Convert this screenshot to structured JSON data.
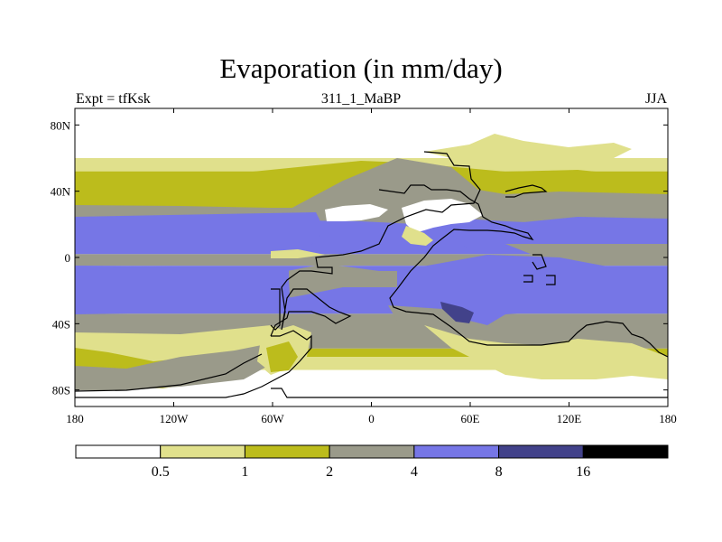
{
  "chart_data": {
    "type": "heatmap",
    "title": "Evaporation (in mm/day)",
    "left_string": "Expt = tfKsk",
    "center_string": "311_1_MaBP",
    "right_string": "JJA",
    "x_ticks": [
      {
        "value": -180,
        "label": "180"
      },
      {
        "value": -120,
        "label": "120W"
      },
      {
        "value": -60,
        "label": "60W"
      },
      {
        "value": 0,
        "label": "0"
      },
      {
        "value": 60,
        "label": "60E"
      },
      {
        "value": 120,
        "label": "120E"
      },
      {
        "value": 180,
        "label": "180"
      }
    ],
    "y_ticks": [
      {
        "value": 80,
        "label": "80N"
      },
      {
        "value": 40,
        "label": "40N"
      },
      {
        "value": 0,
        "label": "0"
      },
      {
        "value": -40,
        "label": "40S"
      },
      {
        "value": -80,
        "label": "80S"
      }
    ],
    "xlim": [
      -180,
      180
    ],
    "ylim": [
      -90,
      90
    ],
    "colorbar": {
      "levels": [
        "0.5",
        "1",
        "2",
        "4",
        "8",
        "16"
      ],
      "colors": [
        "#ffffff",
        "#e0e08c",
        "#bcbc1c",
        "#9a9a8a",
        "#7676e6",
        "#42428a",
        "#000000"
      ]
    },
    "zonal_bands": [
      {
        "lat": [
          60,
          90
        ],
        "class": "0-0.5"
      },
      {
        "lat": [
          52,
          60
        ],
        "class": "0.5-1"
      },
      {
        "lat": [
          40,
          52
        ],
        "class": "1-2"
      },
      {
        "lat": [
          27,
          40
        ],
        "class": "2-4"
      },
      {
        "lat": [
          2,
          27
        ],
        "class": "4-8"
      },
      {
        "lat": [
          -5,
          2
        ],
        "class": "2-4"
      },
      {
        "lat": [
          -34,
          -5
        ],
        "class": "4-8"
      },
      {
        "lat": [
          -55,
          -34
        ],
        "class": "2-4"
      },
      {
        "lat": [
          -60,
          -55
        ],
        "class": "1-2"
      },
      {
        "lat": [
          -68,
          -60
        ],
        "class": "0.5-1"
      },
      {
        "lat": [
          -90,
          -68
        ],
        "class": "0-0.5"
      }
    ]
  }
}
